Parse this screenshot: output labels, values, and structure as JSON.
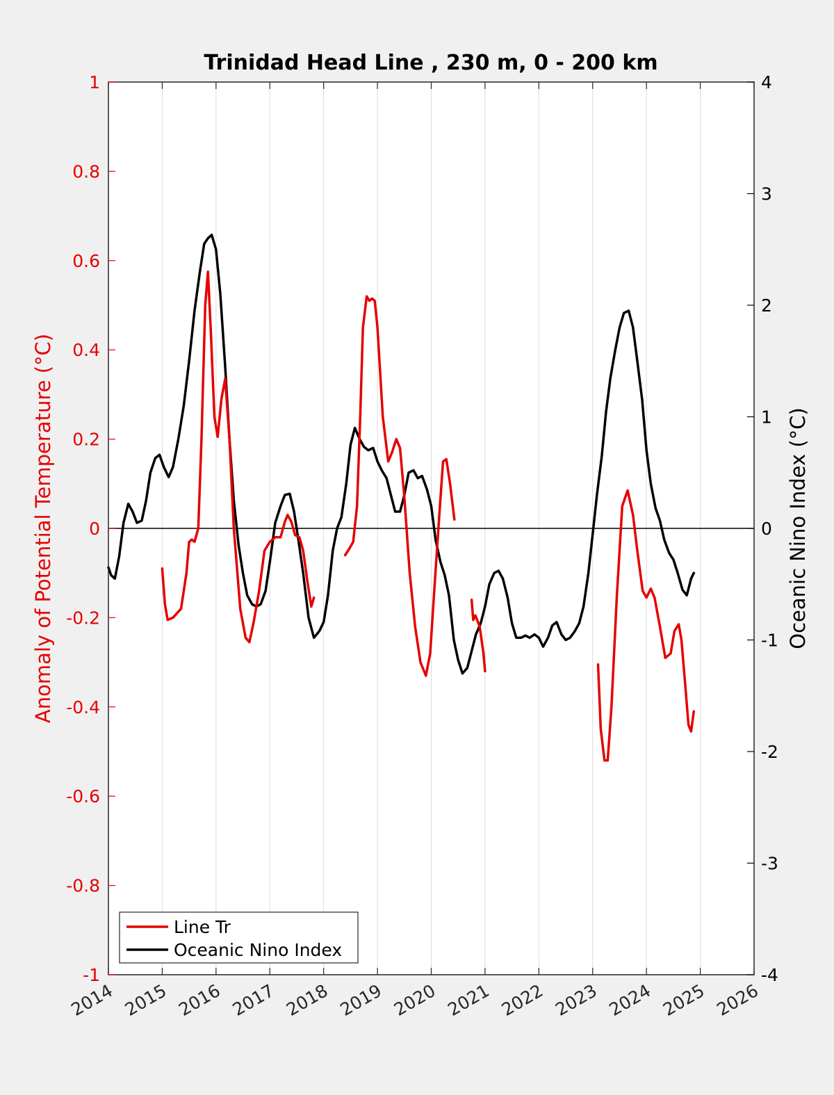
{
  "chart_data": {
    "type": "line",
    "title": "Trinidad Head Line , 230 m, 0 - 200 km",
    "xlabel": "",
    "ylabel_left": "Anomaly of Potential Temperature (°C)",
    "ylabel_right": "Oceanic Nino Index (°C)",
    "xlim": [
      2014,
      2026
    ],
    "ylim_left": [
      -1,
      1
    ],
    "ylim_right": [
      -4,
      4
    ],
    "x_ticks": [
      "2014",
      "2015",
      "2016",
      "2017",
      "2018",
      "2019",
      "2020",
      "2021",
      "2022",
      "2023",
      "2024",
      "2025",
      "2026"
    ],
    "y_left_ticks": [
      "1",
      "0.8",
      "0.6",
      "0.4",
      "0.2",
      "0",
      "-0.2",
      "-0.4",
      "-0.6",
      "-0.8",
      "-1"
    ],
    "y_right_ticks": [
      "4",
      "3",
      "2",
      "1",
      "0",
      "-1",
      "-2",
      "-3",
      "-4"
    ],
    "grid": "vertical",
    "legend_position": "bottom-left",
    "colors": {
      "line_tr": "#e60000",
      "oni": "#000000",
      "left_axis": "#e60000",
      "right_axis": "#000000"
    },
    "series": [
      {
        "name": "Line Tr",
        "axis": "left",
        "segments": [
          [
            [
              2015.0,
              -0.09
            ],
            [
              2015.05,
              -0.17
            ],
            [
              2015.1,
              -0.205
            ],
            [
              2015.2,
              -0.2
            ],
            [
              2015.35,
              -0.18
            ],
            [
              2015.45,
              -0.1
            ],
            [
              2015.5,
              -0.03
            ],
            [
              2015.55,
              -0.025
            ],
            [
              2015.6,
              -0.03
            ],
            [
              2015.67,
              0.0
            ],
            [
              2015.73,
              0.2
            ],
            [
              2015.8,
              0.5
            ],
            [
              2015.85,
              0.575
            ],
            [
              2015.9,
              0.45
            ],
            [
              2015.97,
              0.25
            ],
            [
              2016.03,
              0.205
            ],
            [
              2016.1,
              0.29
            ],
            [
              2016.17,
              0.335
            ],
            [
              2016.25,
              0.2
            ],
            [
              2016.33,
              0.0
            ],
            [
              2016.45,
              -0.18
            ],
            [
              2016.55,
              -0.245
            ],
            [
              2016.62,
              -0.255
            ],
            [
              2016.7,
              -0.21
            ],
            [
              2016.8,
              -0.14
            ],
            [
              2016.9,
              -0.05
            ],
            [
              2017.0,
              -0.03
            ],
            [
              2017.1,
              -0.02
            ],
            [
              2017.2,
              -0.02
            ],
            [
              2017.28,
              0.015
            ],
            [
              2017.33,
              0.03
            ],
            [
              2017.4,
              0.015
            ],
            [
              2017.47,
              -0.015
            ],
            [
              2017.55,
              -0.02
            ],
            [
              2017.62,
              -0.05
            ],
            [
              2017.7,
              -0.12
            ],
            [
              2017.77,
              -0.175
            ],
            [
              2017.82,
              -0.155
            ]
          ],
          [
            [
              2018.4,
              -0.06
            ],
            [
              2018.48,
              -0.045
            ],
            [
              2018.55,
              -0.03
            ],
            [
              2018.62,
              0.05
            ],
            [
              2018.68,
              0.25
            ],
            [
              2018.73,
              0.45
            ],
            [
              2018.8,
              0.52
            ],
            [
              2018.85,
              0.51
            ],
            [
              2018.9,
              0.515
            ],
            [
              2018.95,
              0.51
            ],
            [
              2019.0,
              0.45
            ],
            [
              2019.1,
              0.25
            ],
            [
              2019.2,
              0.15
            ],
            [
              2019.27,
              0.17
            ],
            [
              2019.35,
              0.2
            ],
            [
              2019.42,
              0.18
            ],
            [
              2019.5,
              0.07
            ],
            [
              2019.6,
              -0.1
            ],
            [
              2019.7,
              -0.22
            ],
            [
              2019.8,
              -0.3
            ],
            [
              2019.9,
              -0.33
            ],
            [
              2019.98,
              -0.28
            ],
            [
              2020.05,
              -0.15
            ],
            [
              2020.15,
              0.03
            ],
            [
              2020.22,
              0.15
            ],
            [
              2020.28,
              0.155
            ],
            [
              2020.35,
              0.1
            ],
            [
              2020.43,
              0.02
            ]
          ],
          [
            [
              2020.75,
              -0.16
            ],
            [
              2020.78,
              -0.205
            ],
            [
              2020.82,
              -0.195
            ],
            [
              2020.9,
              -0.22
            ],
            [
              2020.97,
              -0.28
            ],
            [
              2021.0,
              -0.32
            ]
          ],
          [
            [
              2023.1,
              -0.305
            ],
            [
              2023.15,
              -0.45
            ],
            [
              2023.22,
              -0.52
            ],
            [
              2023.28,
              -0.52
            ],
            [
              2023.35,
              -0.4
            ],
            [
              2023.45,
              -0.15
            ],
            [
              2023.55,
              0.05
            ],
            [
              2023.65,
              0.085
            ],
            [
              2023.75,
              0.03
            ],
            [
              2023.83,
              -0.05
            ],
            [
              2023.93,
              -0.14
            ],
            [
              2024.0,
              -0.155
            ],
            [
              2024.08,
              -0.135
            ],
            [
              2024.15,
              -0.155
            ],
            [
              2024.25,
              -0.22
            ],
            [
              2024.35,
              -0.29
            ],
            [
              2024.45,
              -0.28
            ],
            [
              2024.52,
              -0.23
            ],
            [
              2024.6,
              -0.215
            ],
            [
              2024.65,
              -0.25
            ],
            [
              2024.72,
              -0.35
            ],
            [
              2024.78,
              -0.44
            ],
            [
              2024.83,
              -0.455
            ],
            [
              2024.88,
              -0.41
            ]
          ]
        ]
      },
      {
        "name": "Oceanic Nino Index",
        "axis": "right",
        "segments": [
          [
            [
              2014.0,
              -0.35
            ],
            [
              2014.05,
              -0.42
            ],
            [
              2014.12,
              -0.45
            ],
            [
              2014.2,
              -0.25
            ],
            [
              2014.28,
              0.05
            ],
            [
              2014.37,
              0.22
            ],
            [
              2014.45,
              0.15
            ],
            [
              2014.53,
              0.05
            ],
            [
              2014.62,
              0.07
            ],
            [
              2014.7,
              0.25
            ],
            [
              2014.78,
              0.5
            ],
            [
              2014.87,
              0.63
            ],
            [
              2014.95,
              0.66
            ],
            [
              2015.03,
              0.55
            ],
            [
              2015.12,
              0.46
            ],
            [
              2015.2,
              0.55
            ],
            [
              2015.3,
              0.8
            ],
            [
              2015.4,
              1.1
            ],
            [
              2015.5,
              1.5
            ],
            [
              2015.6,
              1.95
            ],
            [
              2015.7,
              2.3
            ],
            [
              2015.78,
              2.55
            ],
            [
              2015.85,
              2.6
            ],
            [
              2015.92,
              2.63
            ],
            [
              2016.0,
              2.5
            ],
            [
              2016.08,
              2.1
            ],
            [
              2016.17,
              1.45
            ],
            [
              2016.25,
              0.8
            ],
            [
              2016.33,
              0.25
            ],
            [
              2016.42,
              -0.15
            ],
            [
              2016.5,
              -0.4
            ],
            [
              2016.58,
              -0.6
            ],
            [
              2016.67,
              -0.68
            ],
            [
              2016.75,
              -0.7
            ],
            [
              2016.83,
              -0.68
            ],
            [
              2016.92,
              -0.56
            ],
            [
              2017.0,
              -0.3
            ],
            [
              2017.1,
              0.05
            ],
            [
              2017.2,
              0.2
            ],
            [
              2017.28,
              0.3
            ],
            [
              2017.37,
              0.31
            ],
            [
              2017.45,
              0.15
            ],
            [
              2017.53,
              -0.1
            ],
            [
              2017.62,
              -0.4
            ],
            [
              2017.72,
              -0.8
            ],
            [
              2017.82,
              -0.98
            ],
            [
              2017.92,
              -0.92
            ],
            [
              2018.0,
              -0.84
            ],
            [
              2018.08,
              -0.6
            ],
            [
              2018.17,
              -0.2
            ],
            [
              2018.25,
              0.0
            ],
            [
              2018.33,
              0.1
            ],
            [
              2018.42,
              0.4
            ],
            [
              2018.5,
              0.75
            ],
            [
              2018.58,
              0.9
            ],
            [
              2018.67,
              0.8
            ],
            [
              2018.75,
              0.73
            ],
            [
              2018.83,
              0.7
            ],
            [
              2018.92,
              0.72
            ],
            [
              2019.0,
              0.6
            ],
            [
              2019.08,
              0.52
            ],
            [
              2019.17,
              0.45
            ],
            [
              2019.25,
              0.3
            ],
            [
              2019.33,
              0.15
            ],
            [
              2019.42,
              0.15
            ],
            [
              2019.5,
              0.3
            ],
            [
              2019.58,
              0.5
            ],
            [
              2019.67,
              0.52
            ],
            [
              2019.75,
              0.45
            ],
            [
              2019.83,
              0.47
            ],
            [
              2019.92,
              0.35
            ],
            [
              2020.0,
              0.2
            ],
            [
              2020.08,
              -0.1
            ],
            [
              2020.17,
              -0.3
            ],
            [
              2020.25,
              -0.42
            ],
            [
              2020.33,
              -0.6
            ],
            [
              2020.42,
              -1.0
            ],
            [
              2020.5,
              -1.18
            ],
            [
              2020.58,
              -1.3
            ],
            [
              2020.67,
              -1.25
            ],
            [
              2020.75,
              -1.1
            ],
            [
              2020.83,
              -0.95
            ],
            [
              2020.92,
              -0.85
            ],
            [
              2021.0,
              -0.7
            ],
            [
              2021.08,
              -0.5
            ],
            [
              2021.17,
              -0.4
            ],
            [
              2021.25,
              -0.38
            ],
            [
              2021.33,
              -0.45
            ],
            [
              2021.42,
              -0.62
            ],
            [
              2021.5,
              -0.85
            ],
            [
              2021.58,
              -0.98
            ],
            [
              2021.67,
              -0.98
            ],
            [
              2021.75,
              -0.96
            ],
            [
              2021.83,
              -0.98
            ],
            [
              2021.92,
              -0.95
            ],
            [
              2022.0,
              -0.98
            ],
            [
              2022.08,
              -1.06
            ],
            [
              2022.17,
              -0.98
            ],
            [
              2022.25,
              -0.87
            ],
            [
              2022.33,
              -0.84
            ],
            [
              2022.42,
              -0.95
            ],
            [
              2022.5,
              -1.0
            ],
            [
              2022.58,
              -0.98
            ],
            [
              2022.67,
              -0.92
            ],
            [
              2022.75,
              -0.85
            ],
            [
              2022.83,
              -0.7
            ],
            [
              2022.92,
              -0.4
            ],
            [
              2023.0,
              -0.05
            ],
            [
              2023.08,
              0.3
            ],
            [
              2023.17,
              0.65
            ],
            [
              2023.25,
              1.05
            ],
            [
              2023.33,
              1.35
            ],
            [
              2023.42,
              1.6
            ],
            [
              2023.5,
              1.8
            ],
            [
              2023.58,
              1.93
            ],
            [
              2023.67,
              1.95
            ],
            [
              2023.75,
              1.8
            ],
            [
              2023.83,
              1.5
            ],
            [
              2023.92,
              1.15
            ],
            [
              2024.0,
              0.7
            ],
            [
              2024.08,
              0.4
            ],
            [
              2024.17,
              0.18
            ],
            [
              2024.25,
              0.07
            ],
            [
              2024.33,
              -0.1
            ],
            [
              2024.42,
              -0.22
            ],
            [
              2024.5,
              -0.28
            ],
            [
              2024.58,
              -0.4
            ],
            [
              2024.67,
              -0.55
            ],
            [
              2024.75,
              -0.6
            ],
            [
              2024.83,
              -0.45
            ],
            [
              2024.88,
              -0.4
            ]
          ]
        ]
      }
    ]
  }
}
